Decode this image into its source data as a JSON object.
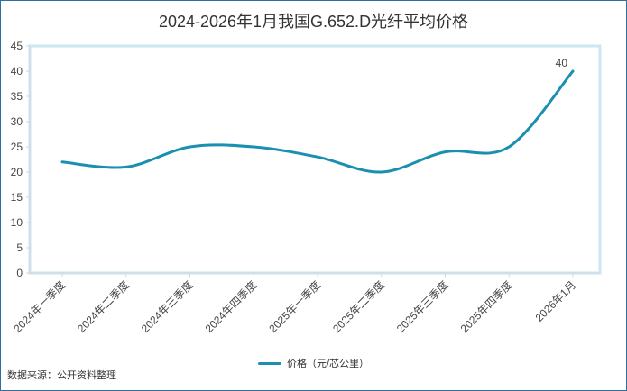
{
  "chart_data": {
    "type": "line",
    "title": "2024-2026年1月我国G.652.D光纤平均价格",
    "categories": [
      "2024年一季度",
      "2024年二季度",
      "2024年三季度",
      "2024年四季度",
      "2025年一季度",
      "2025年二季度",
      "2025年三季度",
      "2025年四季度",
      "2026年1月"
    ],
    "series": [
      {
        "name": "价格（元/芯公里）",
        "values": [
          22,
          21,
          25,
          25,
          23,
          20,
          24,
          25,
          40
        ],
        "color": "#1b8fb0"
      }
    ],
    "data_labels": [
      {
        "index": 8,
        "text": "40"
      }
    ],
    "ylim": [
      0,
      45
    ],
    "yticks": [
      0,
      5,
      10,
      15,
      20,
      25,
      30,
      35,
      40,
      45
    ],
    "xlabel": "",
    "ylabel": "",
    "grid": false,
    "legend_position": "bottom",
    "plot_border_color": "#cde6f3"
  },
  "footer": {
    "source": "数据来源：公开资料整理"
  }
}
